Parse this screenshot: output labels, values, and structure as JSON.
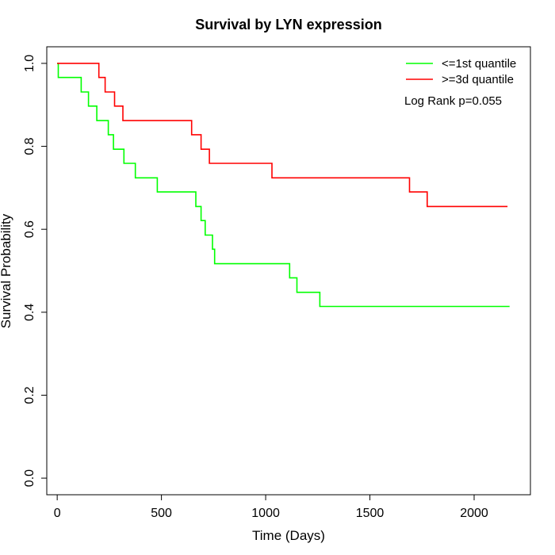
{
  "chart_data": {
    "type": "line",
    "title": "Survival by LYN expression",
    "xlabel": "Time (Days)",
    "ylabel": "Survival Probability",
    "xlim": [
      -50,
      2270
    ],
    "ylim": [
      -0.04,
      1.04
    ],
    "x_ticks": [
      0,
      500,
      1000,
      1500,
      2000
    ],
    "y_ticks": [
      0.0,
      0.2,
      0.4,
      0.6,
      0.8,
      1.0
    ],
    "x_tick_labels": [
      "0",
      "500",
      "1000",
      "1500",
      "2000"
    ],
    "y_tick_labels": [
      "0.0",
      "0.2",
      "0.4",
      "0.6",
      "0.8",
      "1.0"
    ],
    "legend_position": "top-right",
    "grid": false,
    "annotation": "Log Rank p=0.055",
    "series": [
      {
        "name": "<=1st quantile",
        "color": "#00ff00",
        "step": true,
        "x": [
          0,
          5,
          115,
          150,
          190,
          245,
          270,
          320,
          375,
          480,
          665,
          690,
          710,
          745,
          750,
          755,
          1115,
          1150,
          1260,
          2170
        ],
        "y": [
          1.0,
          0.966,
          0.931,
          0.897,
          0.862,
          0.828,
          0.793,
          0.759,
          0.724,
          0.69,
          0.655,
          0.621,
          0.586,
          0.552,
          0.552,
          0.517,
          0.483,
          0.448,
          0.414,
          0.414
        ]
      },
      {
        "name": ">=3d quantile",
        "color": "#ff0000",
        "step": true,
        "x": [
          0,
          200,
          230,
          275,
          315,
          645,
          690,
          730,
          1030,
          1690,
          1775,
          2160
        ],
        "y": [
          1.0,
          0.966,
          0.931,
          0.897,
          0.862,
          0.828,
          0.793,
          0.759,
          0.724,
          0.69,
          0.655,
          0.655
        ]
      }
    ]
  }
}
